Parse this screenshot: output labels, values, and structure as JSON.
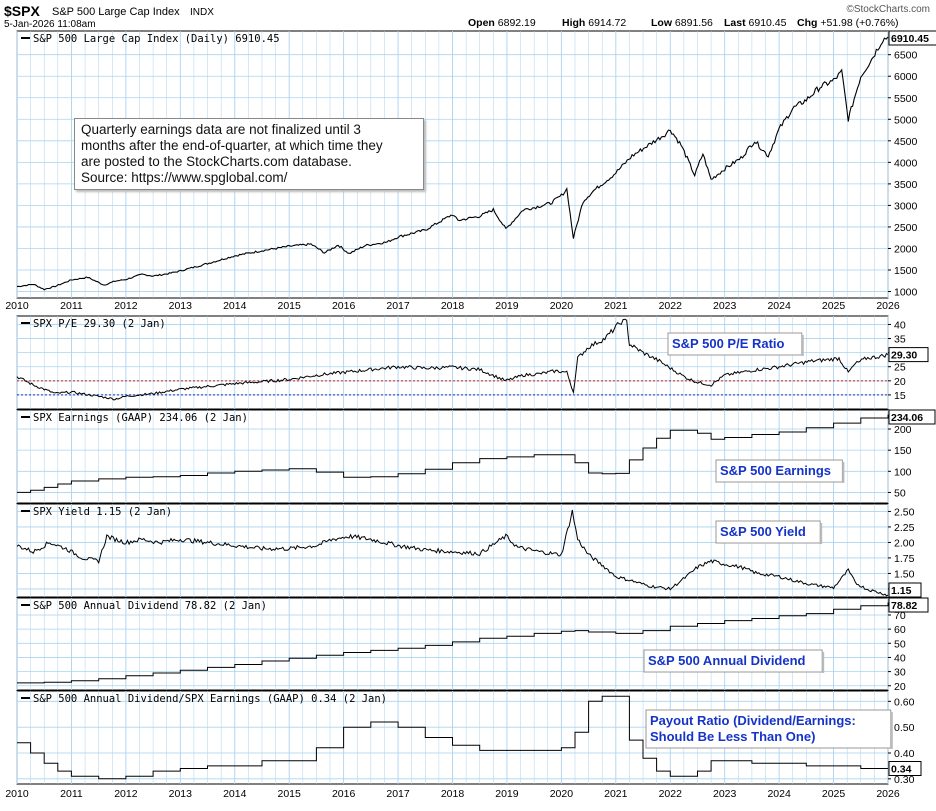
{
  "header": {
    "symbol": "$SPX",
    "name": "S&P 500 Large Cap Index",
    "exchange": "INDX",
    "datetime": "5-Jan-2026 11:08am",
    "brand": "©StockCharts.com",
    "quote": [
      {
        "label": "Open",
        "value": "6892.19"
      },
      {
        "label": "High",
        "value": "6914.72"
      },
      {
        "label": "Low",
        "value": "6891.56"
      },
      {
        "label": "Last",
        "value": "6910.45"
      },
      {
        "label": "Chg",
        "value": "+51.98 (+0.76%)"
      }
    ]
  },
  "note": {
    "lines": [
      "Quarterly earnings data are not finalized until 3",
      "months after the end-of-quarter, at which time they",
      "are posted to the StockCharts.com database.",
      "Source: https://www.spglobal.com/"
    ]
  },
  "colors": {
    "grid": "#a9d3ef",
    "line": "#000000",
    "label_text": "#1533c7",
    "ref_red": "#d41a1a",
    "ref_blue": "#1c2aa0",
    "panel_bg": "#ffffff"
  },
  "chart_data": [
    {
      "id": "price",
      "type": "line",
      "legend": "S&P 500 Large Cap Index (Daily) 6910.45",
      "last_label": "6910.45",
      "ylim": [
        850,
        7050
      ],
      "yticks": [
        1000,
        1500,
        2000,
        2500,
        3000,
        3500,
        4000,
        4500,
        5000,
        5500,
        6000,
        6500
      ],
      "x": [
        2010.0,
        2010.3,
        2010.5,
        2010.7,
        2011.0,
        2011.3,
        2011.6,
        2011.8,
        2012.0,
        2012.3,
        2012.5,
        2012.8,
        2013.0,
        2013.5,
        2014.0,
        2014.5,
        2015.0,
        2015.4,
        2015.65,
        2015.9,
        2016.1,
        2016.4,
        2016.8,
        2017.0,
        2017.5,
        2018.0,
        2018.1,
        2018.5,
        2018.75,
        2018.98,
        2019.3,
        2019.5,
        2019.8,
        2020.0,
        2020.1,
        2020.22,
        2020.4,
        2020.6,
        2020.9,
        2021.0,
        2021.3,
        2021.6,
        2021.9,
        2022.0,
        2022.2,
        2022.45,
        2022.6,
        2022.75,
        2023.0,
        2023.3,
        2023.55,
        2023.8,
        2024.0,
        2024.25,
        2024.5,
        2024.75,
        2025.0,
        2025.15,
        2025.27,
        2025.35,
        2025.5,
        2025.7,
        2025.9,
        2026.0
      ],
      "values": [
        1115,
        1170,
        1050,
        1120,
        1270,
        1330,
        1150,
        1240,
        1280,
        1400,
        1360,
        1420,
        1480,
        1650,
        1830,
        1950,
        2050,
        2100,
        1900,
        2080,
        1880,
        2070,
        2150,
        2270,
        2430,
        2790,
        2650,
        2750,
        2900,
        2450,
        2900,
        2950,
        3050,
        3230,
        3380,
        2240,
        3100,
        3350,
        3650,
        3760,
        4150,
        4400,
        4650,
        4760,
        4400,
        3700,
        4200,
        3600,
        3850,
        4100,
        4500,
        4150,
        4770,
        5250,
        5450,
        5750,
        5900,
        6100,
        5000,
        5350,
        6000,
        6400,
        6850,
        6910
      ]
    },
    {
      "id": "pe",
      "type": "line",
      "legend": "SPX P/E 29.30 (2 Jan)",
      "label": "S&P 500 P/E Ratio",
      "last_label": "29.30",
      "ylim": [
        10,
        43
      ],
      "yticks": [
        15,
        20,
        25,
        30,
        35,
        40
      ],
      "ref_lines": [
        20,
        15
      ],
      "x": [
        2010.0,
        2010.3,
        2010.7,
        2011.0,
        2011.5,
        2011.8,
        2012.0,
        2012.5,
        2013.0,
        2013.5,
        2014.0,
        2014.5,
        2015.0,
        2015.5,
        2016.0,
        2016.5,
        2017.0,
        2017.5,
        2018.0,
        2018.5,
        2018.98,
        2019.3,
        2019.6,
        2019.9,
        2020.1,
        2020.22,
        2020.3,
        2020.5,
        2020.8,
        2021.0,
        2021.1,
        2021.2,
        2021.25,
        2021.5,
        2021.8,
        2022.0,
        2022.3,
        2022.5,
        2022.75,
        2023.0,
        2023.3,
        2023.6,
        2023.85,
        2024.0,
        2024.3,
        2024.6,
        2024.9,
        2025.1,
        2025.27,
        2025.4,
        2025.6,
        2025.8,
        2026.0
      ],
      "values": [
        21.5,
        18.5,
        15.5,
        16,
        14.5,
        13.5,
        14.5,
        15.5,
        17,
        18,
        19,
        19.7,
        20.5,
        22,
        23,
        24,
        25,
        24.5,
        24.8,
        24,
        20,
        22,
        22.5,
        23.5,
        23,
        16,
        28,
        32,
        35,
        39,
        41,
        41,
        33,
        30,
        27,
        24.5,
        21,
        19.5,
        18.5,
        22,
        23,
        24,
        24.5,
        25,
        26,
        27,
        27.5,
        28,
        23,
        26,
        28,
        28.5,
        29.3
      ]
    },
    {
      "id": "earnings",
      "type": "line",
      "legend": "SPX Earnings (GAAP) 234.06 (2 Jan)",
      "label": "S&P 500 Earnings",
      "last_label": "234.06",
      "ylim": [
        25,
        245
      ],
      "yticks": [
        50,
        100,
        150,
        200
      ],
      "x": [
        2010.0,
        2010.25,
        2010.5,
        2010.75,
        2011.0,
        2011.5,
        2012.0,
        2012.5,
        2013.0,
        2013.5,
        2014.0,
        2014.5,
        2015.0,
        2015.5,
        2016.0,
        2016.5,
        2017.0,
        2017.5,
        2018.0,
        2018.5,
        2019.0,
        2019.5,
        2020.0,
        2020.25,
        2020.5,
        2020.75,
        2021.0,
        2021.25,
        2021.5,
        2021.75,
        2022.0,
        2022.5,
        2022.75,
        2023.0,
        2023.5,
        2024.0,
        2024.5,
        2025.0,
        2025.5,
        2026.0
      ],
      "values": [
        50,
        55,
        62,
        70,
        77,
        82,
        86,
        87,
        90,
        96,
        100,
        103,
        106,
        98,
        86,
        87,
        94,
        105,
        120,
        130,
        134,
        139,
        139,
        120,
        96,
        94,
        95,
        127,
        155,
        178,
        197,
        190,
        176,
        180,
        187,
        193,
        203,
        214,
        226,
        234
      ]
    },
    {
      "id": "yield",
      "type": "line",
      "legend": "SPX Yield 1.15 (2 Jan)",
      "label": "S&P 500 Yield",
      "last_label": "1.15",
      "ylim": [
        1.12,
        2.62
      ],
      "yticks": [
        1.25,
        1.5,
        1.75,
        2.0,
        2.25,
        2.5
      ],
      "x": [
        2010.0,
        2010.3,
        2010.6,
        2010.9,
        2011.2,
        2011.5,
        2011.65,
        2011.8,
        2012.0,
        2012.3,
        2012.6,
        2013.0,
        2013.5,
        2014.0,
        2014.5,
        2015.0,
        2015.5,
        2015.8,
        2016.1,
        2016.5,
        2017.0,
        2017.5,
        2018.0,
        2018.5,
        2018.98,
        2019.2,
        2019.6,
        2020.0,
        2020.2,
        2020.3,
        2020.5,
        2020.8,
        2021.0,
        2021.3,
        2021.6,
        2022.0,
        2022.3,
        2022.5,
        2022.75,
        2023.0,
        2023.3,
        2023.6,
        2024.0,
        2024.3,
        2024.6,
        2025.0,
        2025.27,
        2025.4,
        2025.6,
        2025.8,
        2026.0
      ],
      "values": [
        1.95,
        1.85,
        2.0,
        1.9,
        1.75,
        1.7,
        2.1,
        2.05,
        2.0,
        2.05,
        2.0,
        2.05,
        2.0,
        1.95,
        1.9,
        1.9,
        1.95,
        2.05,
        2.1,
        2.05,
        1.95,
        1.88,
        1.85,
        1.82,
        2.1,
        1.92,
        1.85,
        1.8,
        2.5,
        2.05,
        1.8,
        1.6,
        1.45,
        1.38,
        1.3,
        1.25,
        1.45,
        1.6,
        1.7,
        1.65,
        1.6,
        1.5,
        1.45,
        1.38,
        1.32,
        1.27,
        1.55,
        1.35,
        1.25,
        1.2,
        1.15
      ]
    },
    {
      "id": "dividend",
      "type": "line",
      "legend": "S&P 500 Annual Dividend 78.82 (2 Jan)",
      "label": "S&P 500 Annual Dividend",
      "last_label": "78.82",
      "ylim": [
        17,
        82
      ],
      "yticks": [
        20,
        30,
        40,
        50,
        60,
        70
      ],
      "x": [
        2010.0,
        2010.5,
        2011.0,
        2011.5,
        2012.0,
        2012.5,
        2013.0,
        2013.5,
        2014.0,
        2014.5,
        2015.0,
        2015.5,
        2016.0,
        2016.5,
        2017.0,
        2017.5,
        2018.0,
        2018.5,
        2019.0,
        2019.5,
        2020.0,
        2020.25,
        2020.5,
        2021.0,
        2021.5,
        2022.0,
        2022.5,
        2023.0,
        2023.5,
        2024.0,
        2024.5,
        2025.0,
        2025.5,
        2026.0
      ],
      "values": [
        22,
        22.5,
        23.5,
        25,
        27,
        29,
        31,
        33,
        35,
        37.5,
        39.5,
        41.5,
        43.5,
        45,
        46.5,
        48.5,
        51,
        53.5,
        55,
        57,
        58.5,
        59,
        58,
        57,
        59,
        62,
        64,
        66,
        67.5,
        69.5,
        71,
        74,
        76.5,
        78.82
      ]
    },
    {
      "id": "payout",
      "type": "line",
      "legend": "S&P 500 Annual Dividend/SPX Earnings (GAAP) 0.34 (2 Jan)",
      "label_lines": [
        "Payout Ratio (Dividend/Earnings:",
        "Should Be Less Than One)"
      ],
      "last_label": "0.34",
      "ylim": [
        0.28,
        0.64
      ],
      "yticks": [
        0.3,
        0.4,
        0.5,
        0.6
      ],
      "x": [
        2010.0,
        2010.25,
        2010.5,
        2010.75,
        2011.0,
        2011.5,
        2012.0,
        2012.5,
        2013.0,
        2013.5,
        2014.0,
        2014.5,
        2015.0,
        2015.5,
        2016.0,
        2016.5,
        2017.0,
        2017.5,
        2018.0,
        2018.5,
        2019.0,
        2019.5,
        2020.0,
        2020.25,
        2020.5,
        2020.75,
        2021.0,
        2021.25,
        2021.5,
        2021.75,
        2022.0,
        2022.5,
        2022.75,
        2023.0,
        2023.5,
        2024.0,
        2024.5,
        2025.0,
        2025.5,
        2026.0
      ],
      "values": [
        0.44,
        0.4,
        0.36,
        0.33,
        0.31,
        0.3,
        0.31,
        0.33,
        0.34,
        0.35,
        0.35,
        0.37,
        0.37,
        0.42,
        0.5,
        0.52,
        0.5,
        0.46,
        0.43,
        0.41,
        0.41,
        0.41,
        0.42,
        0.48,
        0.6,
        0.62,
        0.62,
        0.45,
        0.38,
        0.33,
        0.31,
        0.33,
        0.37,
        0.37,
        0.36,
        0.36,
        0.35,
        0.35,
        0.34,
        0.34
      ]
    }
  ],
  "x_axis": {
    "range": [
      2010,
      2026
    ],
    "ticks": [
      "2010",
      "2011",
      "2012",
      "2013",
      "2014",
      "2015",
      "2016",
      "2017",
      "2018",
      "2019",
      "2020",
      "2021",
      "2022",
      "2023",
      "2024",
      "2025",
      "2026"
    ]
  }
}
